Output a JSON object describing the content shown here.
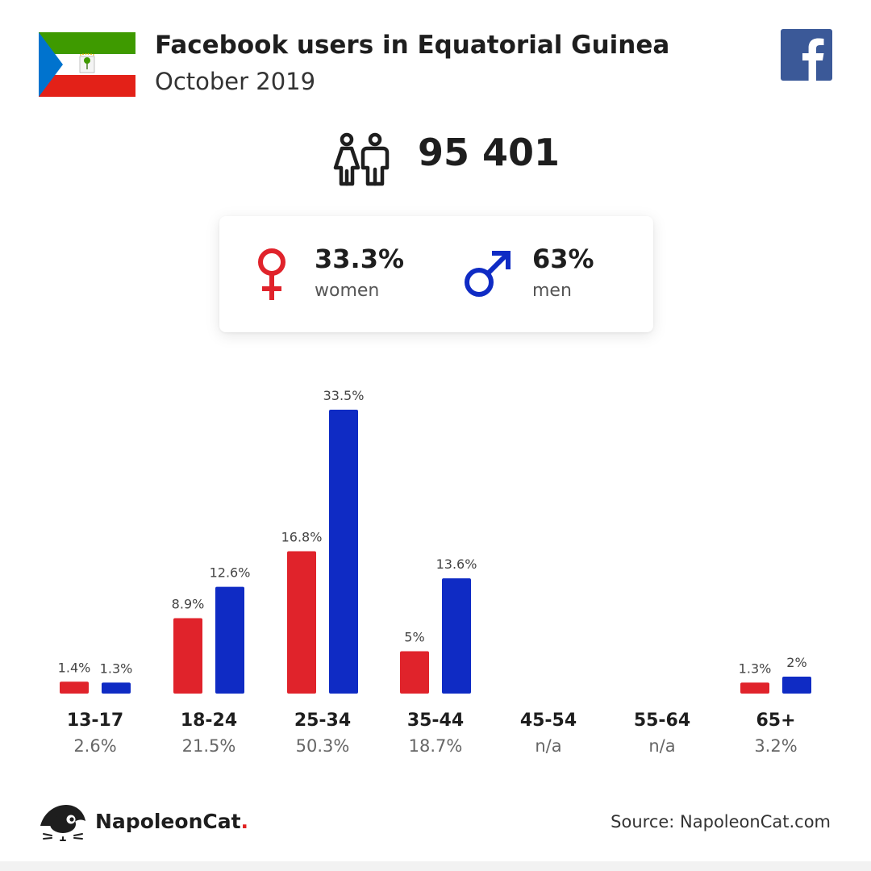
{
  "header": {
    "title": "Facebook users in Equatorial Guinea",
    "subtitle": "October 2019"
  },
  "flag": {
    "green": "#3e9a00",
    "white": "#ffffff",
    "red": "#e32118",
    "blue": "#0073ce"
  },
  "totals": {
    "users": "95 401"
  },
  "gender": {
    "women_value": "33.3%",
    "women_label": "women",
    "men_value": "63%",
    "men_label": "men"
  },
  "colors": {
    "women": "#e0232b",
    "men": "#0f2bc4",
    "facebook": "#3b5998"
  },
  "chart_data": {
    "type": "bar",
    "categories": [
      "13-17",
      "18-24",
      "25-34",
      "35-44",
      "45-54",
      "55-64",
      "65+"
    ],
    "category_totals": [
      "2.6%",
      "21.5%",
      "50.3%",
      "18.7%",
      "n/a",
      "n/a",
      "3.2%"
    ],
    "series": [
      {
        "values": [
          1.4,
          8.9,
          16.8,
          5,
          null,
          null,
          1.3
        ],
        "labels": [
          "1.4%",
          "8.9%",
          "16.8%",
          "5%",
          "",
          "",
          "1.3%"
        ]
      },
      {
        "values": [
          1.3,
          12.6,
          33.5,
          13.6,
          null,
          null,
          2
        ],
        "labels": [
          "1.3%",
          "12.6%",
          "33.5%",
          "13.6%",
          "",
          "",
          "2%"
        ]
      }
    ],
    "ylim": [
      0,
      33.5
    ],
    "grid": false
  },
  "footer": {
    "brand": "NapoleonCat",
    "brand_dot": ".",
    "source": "Source: NapoleonCat.com"
  }
}
